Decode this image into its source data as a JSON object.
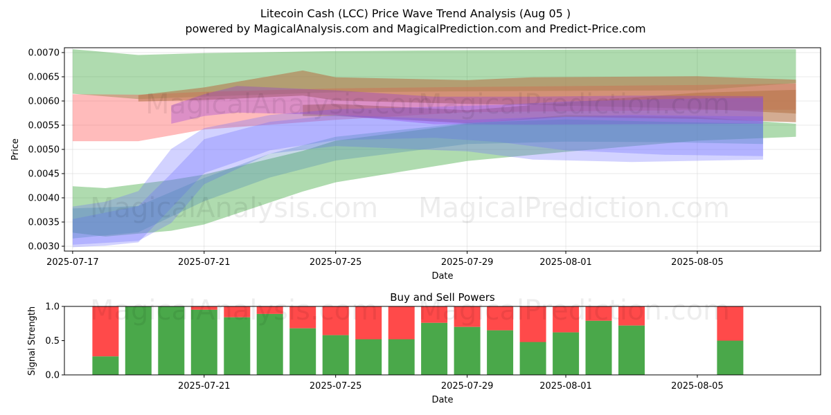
{
  "chart_data": [
    {
      "type": "area",
      "title": "Litecoin Cash (LCC) Price Wave Trend Analysis (Aug 05 )",
      "subtitle": "powered by MagicalAnalysis.com and MagicalPrediction.com and Predict-Price.com",
      "xlabel": "Date",
      "ylabel": "Price",
      "x_range": [
        "2025-07-17",
        "2025-08-08"
      ],
      "y_range": [
        0.0029,
        0.0071
      ],
      "x_ticks": [
        "2025-07-17",
        "2025-07-21",
        "2025-07-25",
        "2025-07-29",
        "2025-08-01",
        "2025-08-05"
      ],
      "y_ticks": [
        "0.0030",
        "0.0035",
        "0.0040",
        "0.0045",
        "0.0050",
        "0.0055",
        "0.0060",
        "0.0065",
        "0.0070"
      ],
      "grid": true,
      "colors": {
        "green": "#2ca02c",
        "red": "#ff4d4d",
        "brown": "#b5754a",
        "blue": "#6a6aff",
        "purple": "#8a2be2",
        "teal": "#4682b4"
      },
      "bands": [
        {
          "color": "green",
          "x": [
            "2025-07-17",
            "2025-07-19",
            "2025-07-21",
            "2025-07-25",
            "2025-07-29",
            "2025-08-05",
            "2025-08-08"
          ],
          "upper": [
            0.00707,
            0.00695,
            0.00699,
            0.00703,
            0.00705,
            0.00707,
            0.00707
          ],
          "lower": [
            0.00615,
            0.00604,
            0.00609,
            0.00618,
            0.0062,
            0.00622,
            0.00637
          ]
        },
        {
          "color": "green",
          "x": [
            "2025-07-17",
            "2025-07-18",
            "2025-07-20",
            "2025-07-21",
            "2025-07-24",
            "2025-07-25",
            "2025-07-29",
            "2025-08-01",
            "2025-08-05",
            "2025-08-08"
          ],
          "upper": [
            0.00424,
            0.0042,
            0.00437,
            0.00448,
            0.00497,
            0.00518,
            0.00553,
            0.00571,
            0.00567,
            0.00553
          ],
          "lower": [
            0.00328,
            0.0032,
            0.00332,
            0.00345,
            0.00413,
            0.00432,
            0.00476,
            0.00495,
            0.00518,
            0.00526
          ]
        },
        {
          "color": "red",
          "x": [
            "2025-07-17",
            "2025-07-19",
            "2025-07-21",
            "2025-07-25",
            "2025-07-29",
            "2025-08-05",
            "2025-08-08"
          ],
          "upper": [
            0.00614,
            0.00613,
            0.00619,
            0.00626,
            0.00629,
            0.00633,
            0.00636
          ],
          "lower": [
            0.00517,
            0.00517,
            0.00541,
            0.00561,
            0.00577,
            0.00581,
            0.00582
          ]
        },
        {
          "color": "brown",
          "x": [
            "2025-07-19",
            "2025-07-21",
            "2025-07-24",
            "2025-07-25",
            "2025-07-29",
            "2025-07-31",
            "2025-08-05",
            "2025-08-08"
          ],
          "upper": [
            0.00612,
            0.00628,
            0.00663,
            0.00649,
            0.00643,
            0.00649,
            0.00651,
            0.00644
          ],
          "lower": [
            0.00599,
            0.00602,
            0.00611,
            0.00601,
            0.00594,
            0.00592,
            0.00584,
            0.00574
          ]
        },
        {
          "color": "brown",
          "x": [
            "2025-07-24",
            "2025-07-25",
            "2025-07-29",
            "2025-08-01",
            "2025-08-05",
            "2025-08-08"
          ],
          "upper": [
            0.00592,
            0.00594,
            0.00581,
            0.00597,
            0.00617,
            0.00623
          ],
          "lower": [
            0.00569,
            0.00569,
            0.00554,
            0.00567,
            0.00563,
            0.00556
          ]
        },
        {
          "color": "blue",
          "x": [
            "2025-07-17",
            "2025-07-18",
            "2025-07-19",
            "2025-07-20",
            "2025-07-21",
            "2025-07-23",
            "2025-07-25",
            "2025-07-28",
            "2025-07-30",
            "2025-08-01",
            "2025-08-04",
            "2025-08-07"
          ],
          "upper": [
            0.00382,
            0.00392,
            0.00414,
            0.00501,
            0.00544,
            0.00571,
            0.00583,
            0.00588,
            0.00592,
            0.00599,
            0.00604,
            0.00607
          ],
          "lower": [
            0.00298,
            0.00301,
            0.00308,
            0.00379,
            0.00451,
            0.00498,
            0.00519,
            0.00524,
            0.00515,
            0.00498,
            0.00489,
            0.00486
          ]
        },
        {
          "color": "blue",
          "x": [
            "2025-07-17",
            "2025-07-19",
            "2025-07-20",
            "2025-07-21",
            "2025-07-23",
            "2025-07-25",
            "2025-07-29",
            "2025-07-31",
            "2025-08-03",
            "2025-08-07"
          ],
          "upper": [
            0.00356,
            0.00383,
            0.0045,
            0.00521,
            0.00557,
            0.00571,
            0.00561,
            0.00566,
            0.00571,
            0.00568
          ],
          "lower": [
            0.00303,
            0.00311,
            0.00348,
            0.00428,
            0.00491,
            0.00507,
            0.00496,
            0.00479,
            0.00474,
            0.00479
          ]
        },
        {
          "color": "purple",
          "x": [
            "2025-07-20",
            "2025-07-21",
            "2025-07-22",
            "2025-07-25",
            "2025-07-28",
            "2025-07-31",
            "2025-08-03",
            "2025-08-07"
          ],
          "upper": [
            0.00591,
            0.00614,
            0.00631,
            0.00622,
            0.00609,
            0.00609,
            0.00611,
            0.0061
          ],
          "lower": [
            0.00553,
            0.00569,
            0.00576,
            0.00571,
            0.00552,
            0.00551,
            0.00552,
            0.00553
          ]
        },
        {
          "color": "teal",
          "x": [
            "2025-07-17",
            "2025-07-19",
            "2025-07-21",
            "2025-07-23",
            "2025-07-25",
            "2025-07-29",
            "2025-08-01",
            "2025-08-04",
            "2025-08-07"
          ],
          "upper": [
            0.00378,
            0.00383,
            0.00441,
            0.00491,
            0.00526,
            0.00555,
            0.00562,
            0.00557,
            0.00553
          ],
          "lower": [
            0.00316,
            0.00329,
            0.00393,
            0.00442,
            0.00477,
            0.00511,
            0.00516,
            0.00515,
            0.00511
          ]
        }
      ],
      "watermarks": [
        "MagicalAnalysis.com",
        "MagicalPrediction.com"
      ]
    },
    {
      "type": "bar",
      "title": "Buy and Sell Powers",
      "xlabel": "Date",
      "ylabel": "Signal Strength",
      "x_range": [
        "2025-07-17",
        "2025-08-08"
      ],
      "ylim": [
        0,
        1
      ],
      "x_ticks": [
        "2025-07-21",
        "2025-07-25",
        "2025-07-29",
        "2025-08-01",
        "2025-08-05"
      ],
      "y_ticks": [
        "0.0",
        "0.5",
        "1.0"
      ],
      "colors": {
        "buy": "#4aa84a",
        "sell": "#ff4a4a"
      },
      "series": [
        {
          "name": "",
          "x": [
            "2025-07-18",
            "2025-07-19",
            "2025-07-20",
            "2025-07-21",
            "2025-07-22",
            "2025-07-23",
            "2025-07-24",
            "2025-07-25",
            "2025-07-26",
            "2025-07-27",
            "2025-07-28",
            "2025-07-29",
            "2025-07-30",
            "2025-07-31",
            "2025-08-01",
            "2025-08-02",
            "2025-08-03",
            "2025-08-06"
          ],
          "values": [
            0.27,
            1.0,
            1.0,
            0.95,
            0.84,
            0.89,
            0.68,
            0.58,
            0.52,
            0.52,
            0.76,
            0.7,
            0.65,
            0.48,
            0.62,
            0.79,
            0.72,
            0.5
          ]
        }
      ],
      "watermarks": [
        "MagicalAnalysis.com",
        "MagicalPrediction.com"
      ]
    }
  ]
}
